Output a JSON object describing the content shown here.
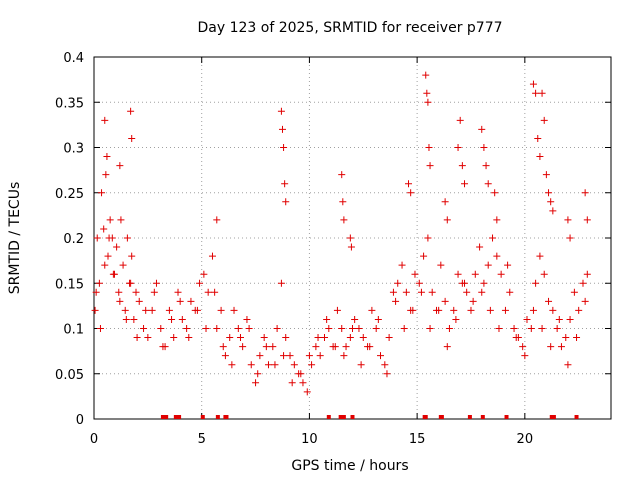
{
  "chart_data": {
    "type": "scatter",
    "title": "Day 123 of 2025, SRMTID for receiver p777",
    "xlabel": "GPS time / hours",
    "ylabel": "SRMTID / TECUs",
    "xlim": [
      0,
      24
    ],
    "ylim": [
      0,
      0.4
    ],
    "xticks": [
      0,
      5,
      10,
      15,
      20
    ],
    "xtick_labels": [
      "0",
      "5",
      "10",
      "15",
      "20"
    ],
    "yticks": [
      0,
      0.05,
      0.1,
      0.15,
      0.2,
      0.25,
      0.3,
      0.35,
      0.4
    ],
    "ytick_labels": [
      "0",
      "0.05",
      "0.1",
      "0.15",
      "0.2",
      "0.25",
      "0.3",
      "0.35",
      "0.4"
    ],
    "grid": true,
    "marker": "plus",
    "color": "#e00000",
    "series": [
      {
        "name": "SRMTID",
        "x": [
          0.05,
          0.15,
          0.25,
          0.35,
          0.45,
          0.55,
          0.65,
          0.75,
          0.85,
          0.95,
          1.05,
          1.15,
          1.25,
          1.35,
          1.45,
          1.55,
          1.65,
          1.75,
          1.85,
          1.95,
          2.1,
          2.3,
          2.5,
          2.7,
          2.9,
          3.1,
          3.3,
          3.5,
          3.7,
          3.9,
          4.1,
          4.3,
          4.5,
          4.7,
          4.9,
          5.1,
          5.3,
          5.5,
          5.7,
          5.9,
          6.1,
          6.3,
          6.5,
          6.7,
          6.9,
          7.1,
          7.3,
          7.5,
          7.7,
          7.9,
          8.1,
          8.3,
          8.5,
          8.7,
          8.9,
          9.1,
          9.3,
          9.5,
          9.7,
          9.9,
          10.1,
          10.3,
          10.5,
          10.7,
          10.9,
          11.1,
          11.3,
          11.5,
          11.7,
          11.9,
          12.1,
          12.3,
          12.5,
          12.7,
          12.9,
          13.1,
          13.3,
          13.5,
          13.7,
          13.9,
          14.1,
          14.3,
          14.5,
          14.7,
          14.9,
          15.1,
          15.3,
          15.5,
          15.7,
          15.9,
          16.1,
          16.3,
          16.5,
          16.7,
          16.9,
          17.1,
          17.3,
          17.5,
          17.7,
          17.9,
          18.1,
          18.3,
          18.5,
          18.7,
          18.9,
          19.1,
          19.3,
          19.5,
          19.7,
          19.9,
          20.1,
          20.3,
          20.5,
          20.7,
          20.9,
          21.1,
          21.3,
          21.5,
          21.7,
          21.9,
          22.1,
          22.3,
          22.5,
          22.7,
          22.9,
          0.1,
          0.3,
          0.5,
          0.7,
          0.9,
          1.2,
          1.5,
          1.7,
          2.0,
          2.4,
          2.8,
          3.2,
          3.6,
          4.0,
          4.4,
          4.8,
          5.2,
          5.6,
          6.0,
          6.4,
          6.8,
          7.2,
          7.6,
          8.0,
          8.4,
          8.8,
          9.2,
          9.6,
          10.0,
          10.4,
          10.8,
          11.2,
          11.6,
          12.0,
          12.4,
          12.8,
          13.2,
          13.6,
          14.0,
          14.4,
          14.8,
          15.2,
          15.6,
          16.0,
          16.4,
          16.8,
          17.2,
          17.6,
          18.0,
          18.4,
          18.8,
          19.2,
          19.6,
          20.0,
          20.4,
          20.8,
          21.2,
          21.6,
          22.0,
          22.4,
          22.8,
          0.5,
          0.6,
          1.2,
          1.7,
          1.75,
          5.7,
          8.7,
          8.75,
          8.8,
          8.85,
          8.9,
          11.5,
          11.55,
          11.6,
          11.9,
          11.95,
          14.6,
          14.7,
          15.4,
          15.45,
          15.5,
          15.55,
          15.6,
          16.3,
          16.4,
          16.9,
          17.0,
          17.1,
          17.2,
          18.0,
          18.1,
          18.2,
          18.3,
          18.6,
          18.7,
          20.4,
          20.5,
          20.6,
          20.7,
          20.8,
          20.9,
          21.0,
          21.1,
          21.2,
          21.3,
          22.0,
          22.1,
          22.8,
          22.9
        ],
        "y": [
          0.12,
          0.2,
          0.15,
          0.25,
          0.21,
          0.27,
          0.18,
          0.22,
          0.2,
          0.16,
          0.19,
          0.14,
          0.22,
          0.17,
          0.12,
          0.2,
          0.15,
          0.18,
          0.11,
          0.14,
          0.13,
          0.1,
          0.09,
          0.12,
          0.15,
          0.1,
          0.08,
          0.12,
          0.09,
          0.14,
          0.11,
          0.1,
          0.13,
          0.12,
          0.15,
          0.16,
          0.14,
          0.18,
          0.1,
          0.12,
          0.07,
          0.09,
          0.12,
          0.1,
          0.08,
          0.11,
          0.06,
          0.04,
          0.07,
          0.09,
          0.06,
          0.08,
          0.1,
          0.15,
          0.09,
          0.07,
          0.06,
          0.05,
          0.04,
          0.03,
          0.06,
          0.08,
          0.07,
          0.09,
          0.1,
          0.08,
          0.12,
          0.1,
          0.08,
          0.09,
          0.11,
          0.1,
          0.09,
          0.08,
          0.12,
          0.1,
          0.07,
          0.06,
          0.09,
          0.14,
          0.15,
          0.17,
          0.14,
          0.12,
          0.16,
          0.15,
          0.18,
          0.2,
          0.14,
          0.12,
          0.17,
          0.13,
          0.1,
          0.12,
          0.16,
          0.15,
          0.14,
          0.12,
          0.16,
          0.19,
          0.15,
          0.17,
          0.2,
          0.18,
          0.16,
          0.12,
          0.14,
          0.1,
          0.09,
          0.08,
          0.11,
          0.1,
          0.15,
          0.18,
          0.16,
          0.13,
          0.12,
          0.1,
          0.08,
          0.09,
          0.11,
          0.14,
          0.12,
          0.15,
          0.16,
          0.14,
          0.1,
          0.17,
          0.2,
          0.16,
          0.13,
          0.11,
          0.15,
          0.09,
          0.12,
          0.14,
          0.08,
          0.11,
          0.13,
          0.09,
          0.12,
          0.1,
          0.14,
          0.08,
          0.06,
          0.09,
          0.1,
          0.05,
          0.08,
          0.06,
          0.07,
          0.04,
          0.05,
          0.07,
          0.09,
          0.11,
          0.08,
          0.07,
          0.1,
          0.06,
          0.08,
          0.11,
          0.05,
          0.13,
          0.1,
          0.12,
          0.14,
          0.1,
          0.12,
          0.08,
          0.11,
          0.15,
          0.13,
          0.14,
          0.12,
          0.1,
          0.17,
          0.09,
          0.07,
          0.12,
          0.1,
          0.08,
          0.11,
          0.06,
          0.09,
          0.13,
          0.33,
          0.29,
          0.28,
          0.34,
          0.31,
          0.22,
          0.34,
          0.32,
          0.3,
          0.26,
          0.24,
          0.27,
          0.24,
          0.22,
          0.2,
          0.19,
          0.26,
          0.25,
          0.38,
          0.36,
          0.35,
          0.3,
          0.28,
          0.24,
          0.22,
          0.3,
          0.33,
          0.28,
          0.26,
          0.32,
          0.3,
          0.28,
          0.26,
          0.25,
          0.22,
          0.37,
          0.36,
          0.31,
          0.29,
          0.36,
          0.33,
          0.27,
          0.25,
          0.24,
          0.23,
          0.22,
          0.2,
          0.25,
          0.22
        ]
      }
    ],
    "rug": {
      "y": 0,
      "x": [
        3.2,
        3.35,
        3.8,
        3.95,
        5.05,
        5.75,
        6.1,
        6.15,
        10.9,
        11.45,
        11.6,
        12.0,
        15.35,
        15.4,
        16.1,
        16.15,
        17.45,
        18.05,
        19.15,
        21.25,
        21.35,
        22.4
      ]
    }
  }
}
